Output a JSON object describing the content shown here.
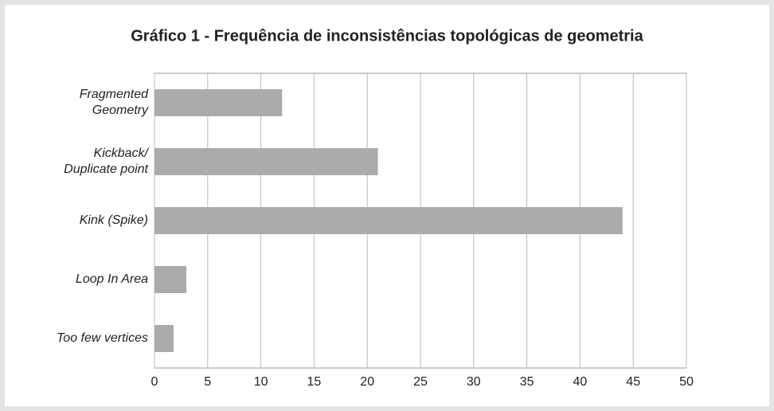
{
  "chart_data": {
    "type": "hbar",
    "title": "Gráfico 1 - Frequência de inconsistências topológicas de geometria",
    "categories": [
      "Fragmented\nGeometry",
      "Kickback/\nDuplicate point",
      "Kink (Spike)",
      "Loop In Area",
      "Too few vertices"
    ],
    "values": [
      12,
      21,
      44,
      3,
      1.8
    ],
    "color": "#ababab",
    "xlim": [
      0,
      50
    ],
    "xticks": [
      0,
      5,
      10,
      15,
      20,
      25,
      30,
      35,
      40,
      45,
      50
    ],
    "grid": true
  }
}
